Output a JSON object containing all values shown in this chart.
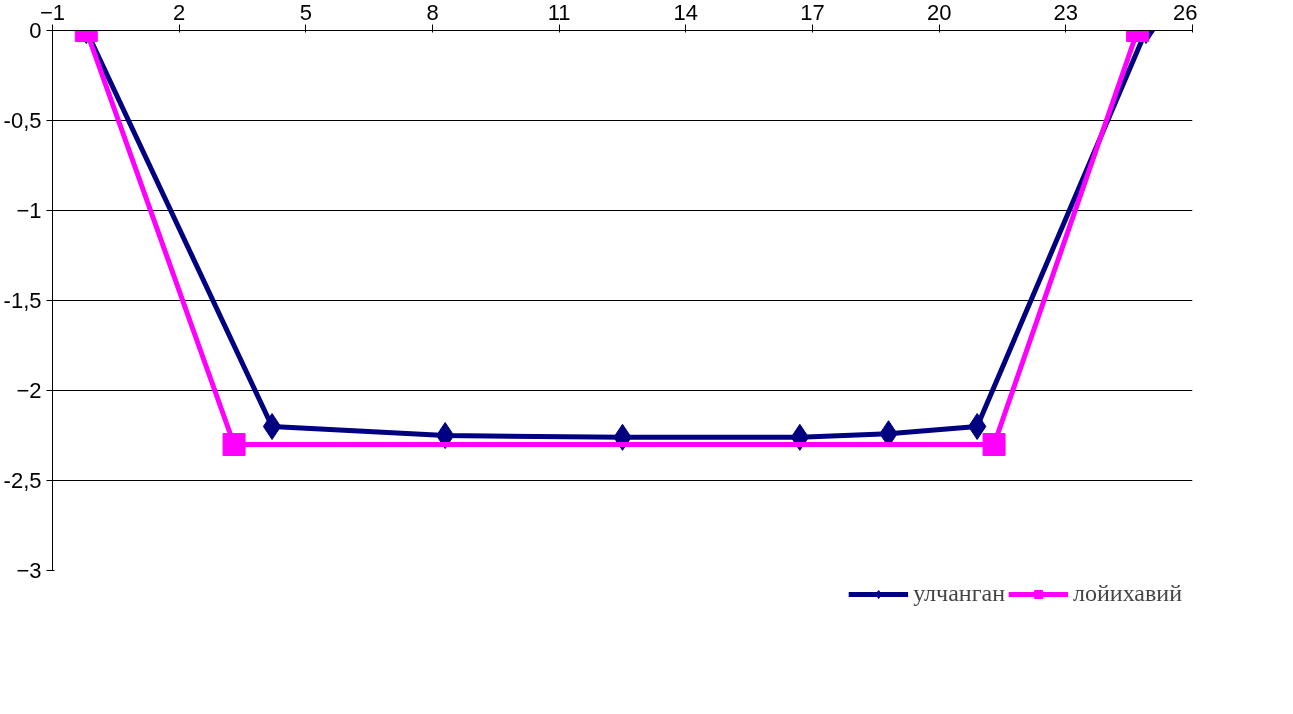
{
  "chart_data": {
    "type": "line",
    "xlim": [
      -1,
      26
    ],
    "xticks": [
      -1,
      2,
      5,
      8,
      11,
      14,
      17,
      20,
      23,
      26
    ],
    "ylim": [
      -3,
      0
    ],
    "yticks": [
      0,
      {
        "value": -0.5,
        "label": "-0,5"
      },
      -1,
      {
        "value": -1.5,
        "label": "-1,5"
      },
      -2,
      {
        "value": -2.5,
        "label": "-2,5"
      },
      -3
    ],
    "grid": "y",
    "legend": "bottom",
    "line_style": "solid",
    "series": [
      {
        "name": "улчанган",
        "color": "#000080",
        "marker": "diamond",
        "x": [
          -0.2,
          4.2,
          8.3,
          12.5,
          16.7,
          18.8,
          20.9,
          24.9
        ],
        "values": [
          0,
          -2.2,
          -2.25,
          -2.26,
          -2.26,
          -2.24,
          -2.2,
          0
        ]
      },
      {
        "name": "лойихавий",
        "color": "#ff00ff",
        "marker": "square",
        "x": [
          -0.2,
          3.3,
          21.3,
          24.7
        ],
        "values": [
          0,
          -2.3,
          -2.3,
          0
        ]
      }
    ]
  }
}
